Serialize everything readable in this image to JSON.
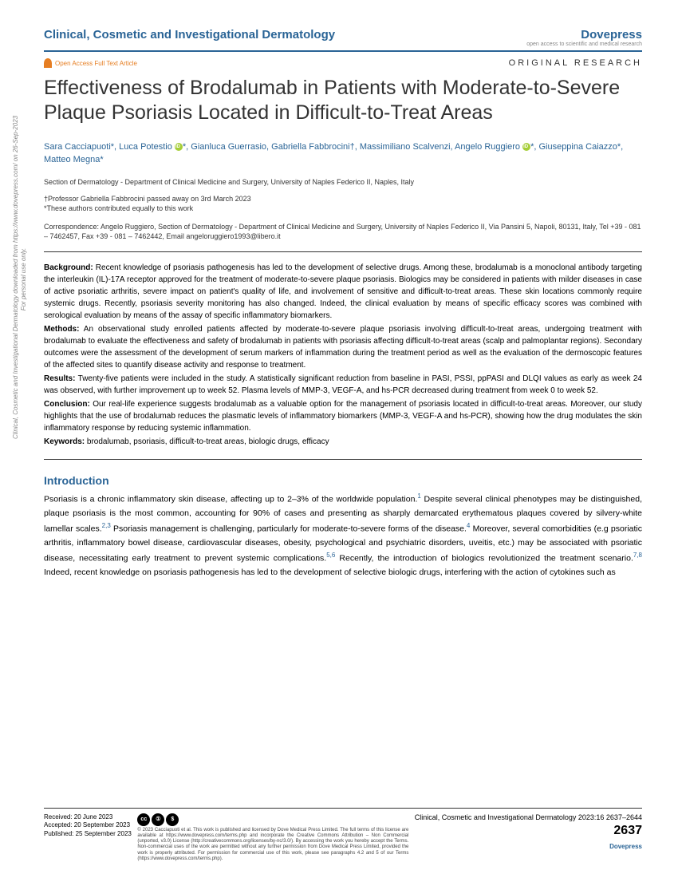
{
  "sidebar": {
    "line1": "Clinical, Cosmetic and Investigational Dermatology downloaded from https://www.dovepress.com/ on 26-Sep-2023",
    "line2": "For personal use only."
  },
  "header": {
    "journal": "Clinical, Cosmetic and Investigational Dermatology",
    "publisher": "Dovepress",
    "tagline": "open access to scientific and medical research"
  },
  "meta": {
    "openAccess": "Open Access Full Text Article",
    "articleType": "ORIGINAL RESEARCH"
  },
  "title": "Effectiveness of Brodalumab in Patients with Moderate-to-Severe Plaque Psoriasis Located in Difficult-to-Treat Areas",
  "authors": {
    "a1": "Sara Cacciapuoti*, Luca Potestio",
    "a2": "*, Gianluca Guerrasio, Gabriella Fabbrocini†, Massimiliano Scalvenzi, Angelo Ruggiero",
    "a3": "*, Giuseppina Caiazzo*, Matteo Megna*"
  },
  "affiliation": "Section of Dermatology - Department of Clinical Medicine and Surgery, University of Naples Federico II, Naples, Italy",
  "notes": {
    "dagger": "†Professor Gabriella Fabbrocini passed away on 3rd March 2023",
    "star": "*These authors contributed equally to this work"
  },
  "correspondence": "Correspondence: Angelo Ruggiero, Section of Dermatology - Department of Clinical Medicine and Surgery, University of Naples Federico II, Via Pansini 5, Napoli, 80131, Italy, Tel +39 - 081 – 7462457, Fax +39 - 081 – 7462442, Email angeloruggiero1993@libero.it",
  "abstract": {
    "backgroundLabel": "Background:",
    "background": " Recent knowledge of psoriasis pathogenesis has led to the development of selective drugs. Among these, brodalumab is a monoclonal antibody targeting the interleukin (IL)-17A receptor approved for the treatment of moderate-to-severe plaque psoriasis. Biologics may be considered in patients with milder diseases in case of active psoriatic arthritis, severe impact on patient's quality of life, and involvement of sensitive and difficult-to-treat areas. These skin locations commonly require systemic drugs. Recently, psoriasis severity monitoring has also changed. Indeed, the clinical evaluation by means of specific efficacy scores was combined with serological evaluation by means of the assay of specific inflammatory biomarkers.",
    "methodsLabel": "Methods:",
    "methods": " An observational study enrolled patients affected by moderate-to-severe plaque psoriasis involving difficult-to-treat areas, undergoing treatment with brodalumab to evaluate the effectiveness and safety of brodalumab in patients with psoriasis affecting difficult-to-treat areas (scalp and palmoplantar regions). Secondary outcomes were the assessment of the development of serum markers of inflammation during the treatment period as well as the evaluation of the dermoscopic features of the affected sites to quantify disease activity and response to treatment.",
    "resultsLabel": "Results:",
    "results": " Twenty-five patients were included in the study. A statistically significant reduction from baseline in PASI, PSSI, ppPASI and DLQI values as early as week 24 was observed, with further improvement up to week 52. Plasma levels of MMP-3, VEGF-A, and hs-PCR decreased during treatment from week 0 to week 52.",
    "conclusionLabel": "Conclusion:",
    "conclusion": " Our real-life experience suggests brodalumab as a valuable option for the management of psoriasis located in difficult-to-treat areas. Moreover, our study highlights that the use of brodalumab reduces the plasmatic levels of inflammatory biomarkers (MMP-3, VEGF-A and hs-PCR), showing how the drug modulates the skin inflammatory response by reducing systemic inflammation.",
    "keywordsLabel": "Keywords:",
    "keywords": " brodalumab, psoriasis, difficult-to-treat areas, biologic drugs, efficacy"
  },
  "intro": {
    "heading": "Introduction",
    "p1a": "Psoriasis is a chronic inflammatory skin disease, affecting up to 2–3% of the worldwide population.",
    "r1": "1",
    "p1b": " Despite several clinical phenotypes may be distinguished, plaque psoriasis is the most common, accounting for 90% of cases and presenting as sharply demarcated erythematous plaques covered by silvery-white lamellar scales.",
    "r2": "2,3",
    "p1c": " Psoriasis management is challenging, particularly for moderate-to-severe forms of the disease.",
    "r3": "4",
    "p1d": " Moreover, several comorbidities (e.g psoriatic arthritis, inflammatory bowel disease, cardiovascular diseases, obesity, psychological and psychiatric disorders, uveitis, etc.) may be associated with psoriatic disease, necessitating early treatment to prevent systemic complications.",
    "r4": "5,6",
    "p1e": " Recently, the introduction of biologics revolutionized the treatment scenario.",
    "r5": "7,8",
    "p1f": " Indeed, recent knowledge on psoriasis pathogenesis has led to the development of selective biologic drugs, interfering with the action of cytokines such as"
  },
  "footer": {
    "received": "Received: 20 June 2023",
    "accepted": "Accepted: 20 September 2023",
    "published": "Published: 25 September 2023",
    "license": "© 2023 Cacciapuoti et al. This work is published and licensed by Dove Medical Press Limited. The full terms of this license are available at https://www.dovepress.com/terms.php and incorporate the Creative Commons Attribution – Non Commercial (unported, v3.0) License (http://creativecommons.org/licenses/by-nc/3.0/). By accessing the work you hereby accept the Terms. Non-commercial uses of the work are permitted without any further permission from Dove Medical Press Limited, provided the work is properly attributed. For permission for commercial use of this work, please see paragraphs 4.2 and 5 of our Terms (https://www.dovepress.com/terms.php).",
    "citation": "Clinical, Cosmetic and Investigational Dermatology 2023:16 2637–2644",
    "pageNum": "2637",
    "dovepress": "Dovepress"
  }
}
